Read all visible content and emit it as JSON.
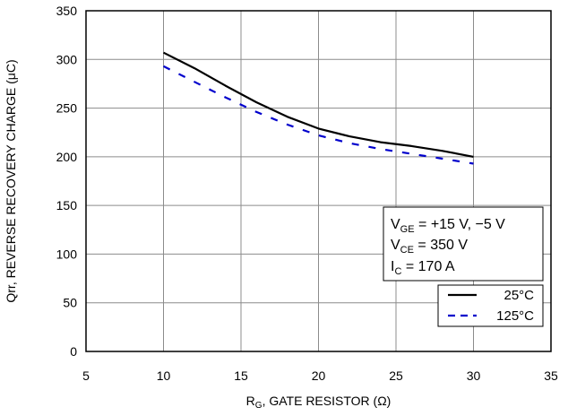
{
  "chart_data": {
    "type": "line",
    "title": "",
    "xlabel": {
      "main": "R",
      "sub": "G",
      "rest": ", GATE RESISTOR (Ω)"
    },
    "ylabel": "Qrr, REVERSE RECOVERY CHARGE (μC)",
    "xlim": [
      5,
      35
    ],
    "ylim": [
      0,
      350
    ],
    "xticks": [
      5,
      10,
      15,
      20,
      25,
      30,
      35
    ],
    "yticks": [
      0,
      50,
      100,
      150,
      200,
      250,
      300,
      350
    ],
    "grid": true,
    "series": [
      {
        "name": "25°C",
        "color": "#000000",
        "dash": "solid",
        "x": [
          10,
          12,
          14,
          16,
          18,
          20,
          22,
          24,
          26,
          28,
          30
        ],
        "y": [
          307,
          291,
          273,
          256,
          241,
          229,
          221,
          215,
          211,
          206,
          200
        ]
      },
      {
        "name": "125°C",
        "color": "#0000cc",
        "dash": "dashed",
        "x": [
          10,
          12,
          14,
          16,
          18,
          20,
          22,
          24,
          26,
          28,
          30
        ],
        "y": [
          293,
          277,
          261,
          246,
          233,
          222,
          214,
          208,
          203,
          198,
          193
        ]
      }
    ],
    "conditions": [
      {
        "main": "V",
        "sub": "GE",
        "rest": " = +15 V, −5 V"
      },
      {
        "main": "V",
        "sub": "CE",
        "rest": " = 350 V"
      },
      {
        "main": "I",
        "sub": "C",
        "rest": " = 170 A"
      }
    ],
    "legend_position": "bottom-right"
  }
}
